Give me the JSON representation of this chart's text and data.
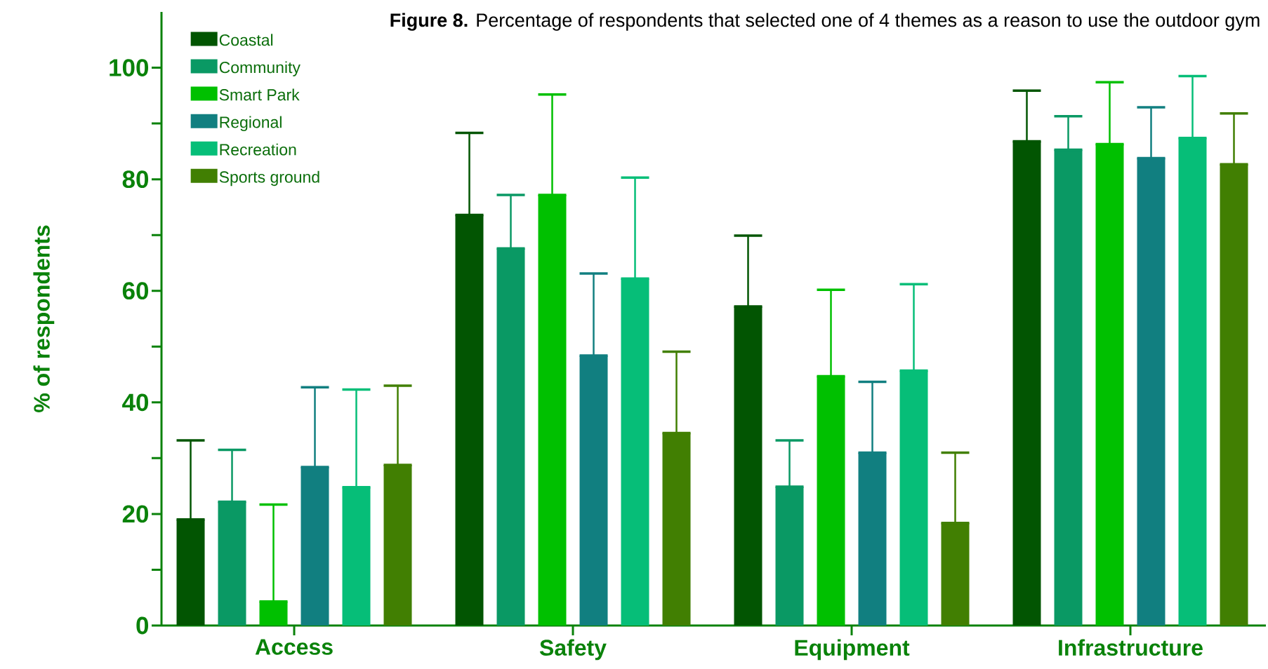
{
  "chart_data": {
    "type": "bar",
    "title": "**Figure 8.**  Percentage of respondents that selected one of 4 themes as a reason to use the outdoor gym",
    "ylabel": "% of respondents",
    "categories": [
      "Access",
      "Safety",
      "Equipment",
      "Infrastructure"
    ],
    "series": [
      {
        "name": "Coastal",
        "color": "#025502",
        "values": [
          19.0,
          73.6,
          57.2,
          86.8
        ],
        "errors": [
          [
            19.0,
            33.2
          ],
          [
            73.6,
            88.3
          ],
          [
            57.2,
            69.9
          ],
          [
            86.8,
            95.9
          ]
        ]
      },
      {
        "name": "Community",
        "color": "#0a9964",
        "values": [
          22.2,
          67.6,
          24.9,
          85.3
        ],
        "errors": [
          [
            22.2,
            31.5
          ],
          [
            67.6,
            77.2
          ],
          [
            24.9,
            33.2
          ],
          [
            85.3,
            91.3
          ]
        ]
      },
      {
        "name": "Smart Park",
        "color": "#00c000",
        "values": [
          4.3,
          77.2,
          44.7,
          86.3
        ],
        "errors": [
          [
            4.3,
            21.7
          ],
          [
            77.2,
            95.2
          ],
          [
            44.7,
            60.2
          ],
          [
            86.3,
            97.4
          ]
        ]
      },
      {
        "name": "Regional",
        "color": "#117f80",
        "values": [
          28.4,
          48.4,
          31.0,
          83.8
        ],
        "errors": [
          [
            28.4,
            42.7
          ],
          [
            48.4,
            63.1
          ],
          [
            31.0,
            43.7
          ],
          [
            83.8,
            92.9
          ]
        ]
      },
      {
        "name": "Recreation",
        "color": "#06be78",
        "values": [
          24.8,
          62.2,
          45.7,
          87.4
        ],
        "errors": [
          [
            24.8,
            42.3
          ],
          [
            62.2,
            80.3
          ],
          [
            45.7,
            61.2
          ],
          [
            87.4,
            98.5
          ]
        ]
      },
      {
        "name": "Sports ground",
        "color": "#417f02",
        "values": [
          28.8,
          34.5,
          18.4,
          82.7
        ],
        "errors": [
          [
            28.8,
            43.0
          ],
          [
            34.5,
            49.1
          ],
          [
            18.4,
            31.0
          ],
          [
            82.7,
            91.8
          ]
        ]
      }
    ],
    "ylim": [
      0,
      110
    ],
    "yticks": [
      0,
      {
        "value": 10,
        "label": null
      },
      20,
      {
        "value": 30,
        "label": null
      },
      40,
      {
        "value": 50,
        "label": null
      },
      60,
      {
        "value": 70,
        "label": null
      },
      80,
      {
        "value": 90,
        "label": null
      },
      100
    ],
    "legend": "top left"
  }
}
